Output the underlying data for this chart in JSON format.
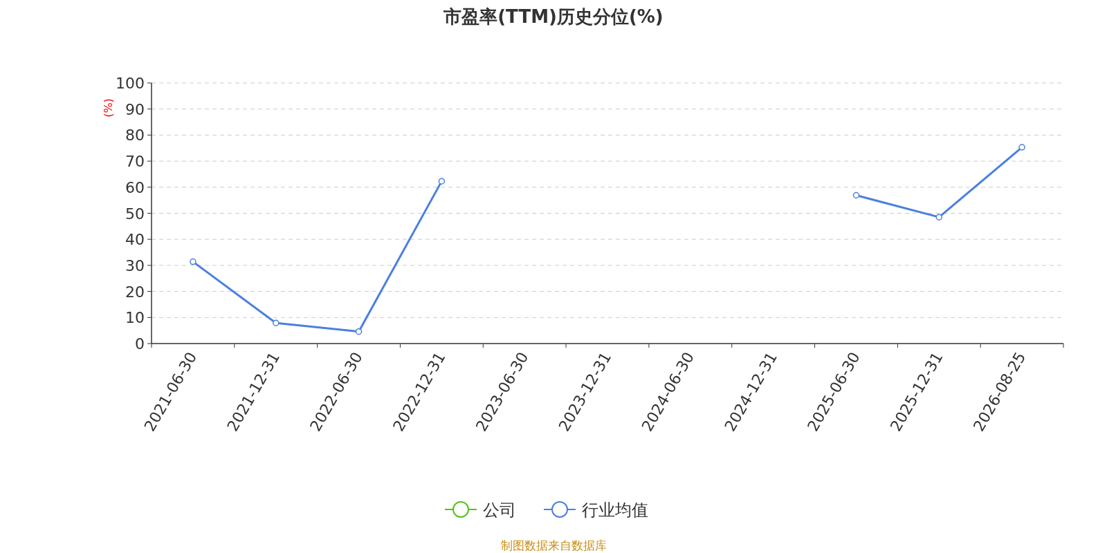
{
  "chart_data": {
    "type": "line",
    "title": "市盈率(TTM)历史分位(%)",
    "ylabel": "(%)",
    "categories": [
      "2021-06-30",
      "2021-12-31",
      "2022-06-30",
      "2022-12-31",
      "2023-06-30",
      "2023-12-31",
      "2024-06-30",
      "2024-12-31",
      "2025-06-30",
      "2025-12-31",
      "2026-08-25"
    ],
    "series": [
      {
        "name": "公司",
        "color": "#52c41a",
        "values": [
          null,
          null,
          null,
          null,
          null,
          null,
          null,
          null,
          null,
          null,
          null
        ]
      },
      {
        "name": "行业均值",
        "color": "#4a7fe0",
        "values": [
          31.4,
          7.9,
          4.6,
          62.3,
          null,
          null,
          null,
          null,
          56.9,
          48.5,
          75.3
        ]
      }
    ],
    "ylim": [
      0,
      100
    ],
    "yticks": [
      0,
      10,
      20,
      30,
      40,
      50,
      60,
      70,
      80,
      90,
      100
    ],
    "grid": "y",
    "legend": "bottom",
    "marker": "circle",
    "annotations": [
      "制图数据来自数据库"
    ]
  }
}
